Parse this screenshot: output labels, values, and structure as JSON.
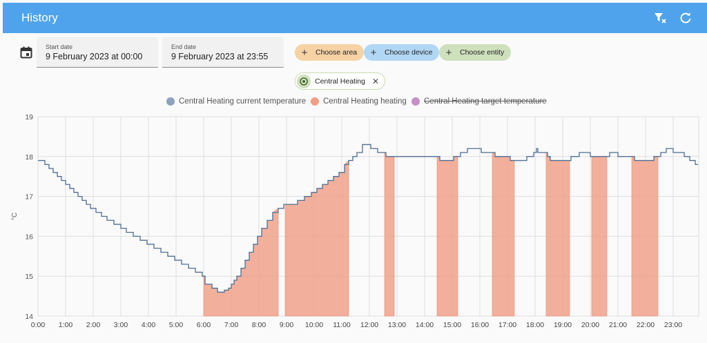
{
  "header": {
    "title": "History",
    "clear_icon": "filter-remove-icon",
    "refresh_icon": "refresh-icon",
    "color": "#4fa3ec"
  },
  "dates": {
    "start_label": "Start date",
    "start_value": "9 February 2023 at 00:00",
    "end_label": "End date",
    "end_value": "9 February 2023 at 23:55"
  },
  "chips": {
    "area": {
      "label": "Choose area",
      "color": "#f6d2a4"
    },
    "device": {
      "label": "Choose device",
      "color": "#b1d7f5"
    },
    "entity": {
      "label": "Choose entity",
      "color": "#cfe0bd"
    }
  },
  "selected_entity": {
    "label": "Central Heating",
    "icon": "thermostat-icon",
    "close": "✕"
  },
  "chart_data": {
    "type": "line",
    "title": "",
    "ylabel": "°C",
    "xlabel": "",
    "ylim": [
      14,
      19
    ],
    "xlim": [
      0,
      23.9
    ],
    "yticks": [
      "14",
      "15",
      "16",
      "17",
      "18",
      "19"
    ],
    "xticks": [
      "0:00",
      "1:00",
      "2:00",
      "3:00",
      "4:00",
      "5:00",
      "6:00",
      "7:00",
      "8:00",
      "9:00",
      "10:00",
      "11:00",
      "12:00",
      "13:00",
      "14:00",
      "15:00",
      "16:00",
      "17:00",
      "18:00",
      "19:00",
      "20:00",
      "21:00",
      "22:00",
      "23:00"
    ],
    "legend": [
      {
        "name": "Central Heating current temperature",
        "color": "#8da2c0",
        "hidden": false
      },
      {
        "name": "Central Heating heating",
        "color": "#f09e85",
        "hidden": false
      },
      {
        "name": "Central Heating target temperature",
        "color": "#c590c8",
        "hidden": true
      }
    ],
    "series": [
      {
        "name": "Central Heating current temperature",
        "color": "#4e6d94",
        "points": [
          [
            0,
            17.9
          ],
          [
            0.25,
            17.8
          ],
          [
            0.4,
            17.7
          ],
          [
            0.55,
            17.6
          ],
          [
            0.7,
            17.5
          ],
          [
            0.85,
            17.4
          ],
          [
            1.0,
            17.3
          ],
          [
            1.15,
            17.2
          ],
          [
            1.3,
            17.1
          ],
          [
            1.45,
            17.0
          ],
          [
            1.6,
            16.9
          ],
          [
            1.75,
            16.8
          ],
          [
            1.9,
            16.7
          ],
          [
            2.1,
            16.6
          ],
          [
            2.3,
            16.5
          ],
          [
            2.5,
            16.4
          ],
          [
            2.75,
            16.3
          ],
          [
            3.0,
            16.2
          ],
          [
            3.2,
            16.1
          ],
          [
            3.45,
            16.0
          ],
          [
            3.7,
            15.9
          ],
          [
            3.95,
            15.8
          ],
          [
            4.2,
            15.7
          ],
          [
            4.45,
            15.6
          ],
          [
            4.7,
            15.5
          ],
          [
            4.95,
            15.4
          ],
          [
            5.2,
            15.3
          ],
          [
            5.45,
            15.2
          ],
          [
            5.7,
            15.1
          ],
          [
            5.95,
            15.0
          ],
          [
            6.05,
            14.8
          ],
          [
            6.3,
            14.7
          ],
          [
            6.5,
            14.6
          ],
          [
            6.75,
            14.65
          ],
          [
            6.9,
            14.7
          ],
          [
            7.0,
            14.8
          ],
          [
            7.1,
            14.9
          ],
          [
            7.2,
            15.0
          ],
          [
            7.35,
            15.2
          ],
          [
            7.5,
            15.4
          ],
          [
            7.65,
            15.6
          ],
          [
            7.8,
            15.8
          ],
          [
            7.95,
            16.0
          ],
          [
            8.1,
            16.2
          ],
          [
            8.3,
            16.4
          ],
          [
            8.5,
            16.6
          ],
          [
            8.7,
            16.7
          ],
          [
            8.9,
            16.8
          ],
          [
            9.15,
            16.8
          ],
          [
            9.4,
            16.9
          ],
          [
            9.65,
            17.0
          ],
          [
            9.9,
            17.1
          ],
          [
            10.1,
            17.2
          ],
          [
            10.3,
            17.3
          ],
          [
            10.5,
            17.4
          ],
          [
            10.7,
            17.5
          ],
          [
            10.9,
            17.6
          ],
          [
            11.1,
            17.8
          ],
          [
            11.25,
            17.9
          ],
          [
            11.4,
            18.0
          ],
          [
            11.55,
            18.1
          ],
          [
            11.75,
            18.3
          ],
          [
            12.05,
            18.2
          ],
          [
            12.3,
            18.1
          ],
          [
            12.6,
            18.0
          ],
          [
            14.3,
            18.0
          ],
          [
            14.55,
            17.9
          ],
          [
            14.8,
            17.9
          ],
          [
            15.05,
            18.0
          ],
          [
            15.3,
            18.1
          ],
          [
            15.55,
            18.2
          ],
          [
            16.05,
            18.1
          ],
          [
            16.55,
            18.0
          ],
          [
            17.1,
            17.9
          ],
          [
            17.7,
            18.0
          ],
          [
            17.95,
            18.1
          ],
          [
            18.05,
            18.2
          ],
          [
            18.1,
            18.1
          ],
          [
            18.45,
            18.0
          ],
          [
            18.55,
            17.9
          ],
          [
            19.3,
            18.0
          ],
          [
            19.6,
            18.1
          ],
          [
            20.0,
            18.0
          ],
          [
            20.7,
            18.1
          ],
          [
            21.0,
            18.0
          ],
          [
            21.6,
            17.9
          ],
          [
            22.3,
            18.0
          ],
          [
            22.55,
            18.1
          ],
          [
            22.75,
            18.2
          ],
          [
            23.0,
            18.1
          ],
          [
            23.4,
            18.0
          ],
          [
            23.6,
            17.9
          ],
          [
            23.8,
            17.8
          ],
          [
            23.9,
            17.8
          ]
        ]
      }
    ],
    "heating_intervals": [
      [
        6.0,
        8.7
      ],
      [
        8.95,
        11.25
      ],
      [
        12.55,
        12.9
      ],
      [
        14.45,
        15.2
      ],
      [
        16.45,
        17.25
      ],
      [
        18.4,
        19.25
      ],
      [
        20.05,
        20.6
      ],
      [
        21.5,
        22.45
      ]
    ]
  }
}
